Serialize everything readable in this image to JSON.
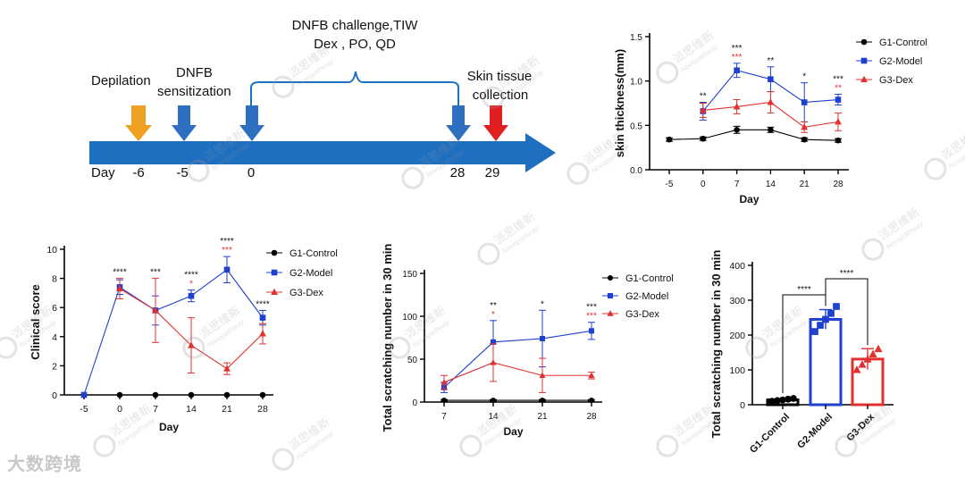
{
  "timeline": {
    "top_label_1": "DNFB challenge,TIW",
    "top_label_2": "Dex , PO, QD",
    "depilation": "Depilation",
    "dnfb_1": "DNFB",
    "dnfb_2": "sensitization",
    "skin_1": "Skin tissue",
    "skin_2": "collection",
    "day_label": "Day",
    "days": [
      "-6",
      "-5",
      "0",
      "28",
      "29"
    ],
    "colors": {
      "axis": "#1f6fc0",
      "depilation": "#f0a020",
      "dnfb": "#2f6fbf",
      "collection": "#e02020"
    }
  },
  "watermark": {
    "cn": "派思维新",
    "en": "Novopathway"
  },
  "corner_logo": "大数跨境",
  "chart_data": [
    {
      "id": "skin",
      "type": "line",
      "title": "",
      "xlabel": "Day",
      "ylabel": "skin thickness(mm)",
      "categories": [
        "-5",
        "0",
        "7",
        "14",
        "21",
        "28"
      ],
      "yticks": [
        "0.0",
        "0.5",
        "1.0",
        "1.5"
      ],
      "ylim": [
        0,
        1.5
      ],
      "legend_position": "top-right",
      "series": [
        {
          "name": "G1-Control",
          "color": "#000000",
          "marker": "circle",
          "values": [
            0.34,
            0.35,
            0.45,
            0.45,
            0.34,
            0.33
          ],
          "errors": [
            0.02,
            0.02,
            0.04,
            0.03,
            0.02,
            0.02
          ]
        },
        {
          "name": "G2-Model",
          "color": "#1f3fcf",
          "marker": "square",
          "values": [
            null,
            0.66,
            1.12,
            1.02,
            0.76,
            0.79
          ],
          "errors": [
            0,
            0.1,
            0.08,
            0.14,
            0.22,
            0.06
          ]
        },
        {
          "name": "G3-Dex",
          "color": "#e03030",
          "marker": "triangle",
          "values": [
            null,
            0.67,
            0.71,
            0.76,
            0.48,
            0.54
          ],
          "errors": [
            0,
            0.08,
            0.08,
            0.12,
            0.06,
            0.1
          ]
        }
      ],
      "annotations": [
        {
          "x": "0",
          "top": "**",
          "bottom": ""
        },
        {
          "x": "7",
          "top": "***",
          "bottom": "***"
        },
        {
          "x": "14",
          "top": "**",
          "bottom": ""
        },
        {
          "x": "21",
          "top": "*",
          "bottom": ""
        },
        {
          "x": "28",
          "top": "***",
          "bottom": "**"
        }
      ]
    },
    {
      "id": "clinical",
      "type": "line",
      "title": "",
      "xlabel": "Day",
      "ylabel": "Clinical score",
      "categories": [
        "-5",
        "0",
        "7",
        "14",
        "21",
        "28"
      ],
      "yticks": [
        "0",
        "2",
        "4",
        "6",
        "8",
        "10"
      ],
      "ylim": [
        0,
        10
      ],
      "legend_position": "right",
      "series": [
        {
          "name": "G1-Control",
          "color": "#000000",
          "marker": "circle",
          "values": [
            0,
            0,
            0,
            0,
            0,
            0
          ],
          "errors": [
            0,
            0,
            0,
            0,
            0,
            0
          ]
        },
        {
          "name": "G2-Model",
          "color": "#1f3fcf",
          "marker": "square",
          "values": [
            0,
            7.4,
            5.8,
            6.8,
            8.6,
            5.3
          ],
          "errors": [
            0,
            0.5,
            1.0,
            0.4,
            0.9,
            0.5
          ]
        },
        {
          "name": "G3-Dex",
          "color": "#e03030",
          "marker": "triangle",
          "values": [
            null,
            7.3,
            5.8,
            3.4,
            1.8,
            4.2
          ],
          "errors": [
            0,
            0.7,
            2.2,
            1.9,
            0.4,
            0.7
          ]
        }
      ],
      "annotations": [
        {
          "x": "0",
          "top": "****",
          "bottom": ""
        },
        {
          "x": "7",
          "top": "***",
          "bottom": ""
        },
        {
          "x": "14",
          "top": "****",
          "bottom": "*"
        },
        {
          "x": "21",
          "top": "****",
          "bottom": "***"
        },
        {
          "x": "28",
          "top": "****",
          "bottom": ""
        }
      ]
    },
    {
      "id": "scratch_line",
      "type": "line",
      "title": "",
      "xlabel": "Day",
      "ylabel": "Total scratching number in 30 min",
      "categories": [
        "7",
        "14",
        "21",
        "28"
      ],
      "yticks": [
        "0",
        "50",
        "100",
        "150"
      ],
      "ylim": [
        0,
        150
      ],
      "legend_position": "top-right",
      "series": [
        {
          "name": "G1-Control",
          "color": "#000000",
          "marker": "circle",
          "values": [
            2,
            2,
            2,
            2
          ],
          "errors": [
            1,
            1,
            1,
            1
          ]
        },
        {
          "name": "G2-Model",
          "color": "#1f3fcf",
          "marker": "square",
          "values": [
            17,
            70,
            74,
            83
          ],
          "errors": [
            6,
            25,
            33,
            10
          ]
        },
        {
          "name": "G3-Dex",
          "color": "#e03030",
          "marker": "triangle",
          "values": [
            23,
            46,
            31,
            31
          ],
          "errors": [
            8,
            22,
            20,
            4
          ]
        }
      ],
      "annotations": [
        {
          "x": "14",
          "top": "**",
          "bottom": "*"
        },
        {
          "x": "21",
          "top": "*",
          "bottom": ""
        },
        {
          "x": "28",
          "top": "***",
          "bottom": "***"
        }
      ]
    },
    {
      "id": "scratch_bar",
      "type": "bar",
      "title": "",
      "xlabel": "",
      "ylabel": "Total scratching number in 30 min",
      "categories": [
        "G1-Control",
        "G2-Model",
        "G3-Dex"
      ],
      "values": [
        14,
        245,
        131
      ],
      "errors": [
        3,
        28,
        30
      ],
      "colors": [
        "#000000",
        "#1f3fcf",
        "#e03030"
      ],
      "points": [
        [
          10,
          12,
          14,
          16,
          18
        ],
        [
          210,
          228,
          245,
          262,
          282
        ],
        [
          100,
          115,
          130,
          145,
          160
        ]
      ],
      "yticks": [
        "0",
        "100",
        "200",
        "300",
        "400"
      ],
      "ylim": [
        0,
        400
      ],
      "brackets": [
        {
          "from": 0,
          "to": 1,
          "label": "****"
        },
        {
          "from": 1,
          "to": 2,
          "label": "****"
        }
      ]
    }
  ]
}
